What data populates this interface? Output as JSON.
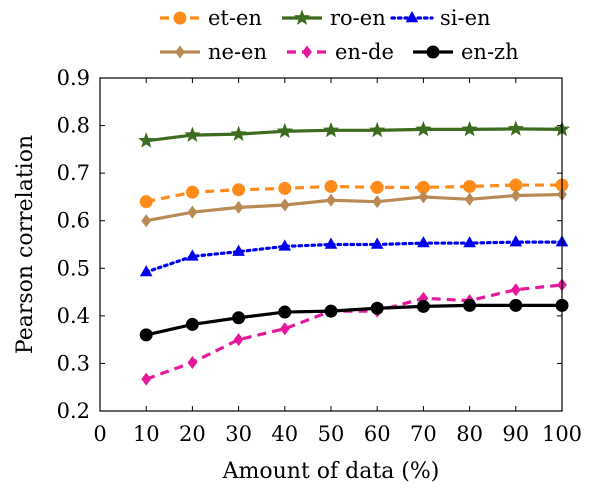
{
  "chart_data": {
    "type": "line",
    "xlabel": "Amount of data (%)",
    "ylabel": "Pearson correlation",
    "x": [
      10,
      20,
      30,
      40,
      50,
      60,
      70,
      80,
      90,
      100
    ],
    "xlim": [
      0,
      100
    ],
    "ylim": [
      0.2,
      0.9
    ],
    "xticks": [
      "0",
      "10",
      "20",
      "30",
      "40",
      "50",
      "60",
      "70",
      "80",
      "90",
      "100"
    ],
    "yticks": [
      "0.2",
      "0.3",
      "0.4",
      "0.5",
      "0.6",
      "0.7",
      "0.8",
      "0.9"
    ],
    "grid": false,
    "legend_position": "top",
    "series": [
      {
        "name": "et-en",
        "color": "#ff8c1a",
        "marker": "circle",
        "line_style": "dashed",
        "values": [
          0.64,
          0.66,
          0.665,
          0.668,
          0.672,
          0.67,
          0.67,
          0.672,
          0.675,
          0.675
        ]
      },
      {
        "name": "ro-en",
        "color": "#3d6b1f",
        "marker": "star",
        "line_style": "solid",
        "values": [
          0.768,
          0.78,
          0.782,
          0.788,
          0.79,
          0.79,
          0.792,
          0.792,
          0.793,
          0.792
        ]
      },
      {
        "name": "si-en",
        "color": "#0000ee",
        "marker": "triangle",
        "line_style": "dotted",
        "values": [
          0.492,
          0.525,
          0.535,
          0.546,
          0.55,
          0.55,
          0.553,
          0.553,
          0.555,
          0.555
        ]
      },
      {
        "name": "ne-en",
        "color": "#b98a55",
        "marker": "diamond",
        "line_style": "solid",
        "values": [
          0.6,
          0.618,
          0.628,
          0.633,
          0.643,
          0.64,
          0.65,
          0.645,
          0.653,
          0.655
        ]
      },
      {
        "name": "en-de",
        "color": "#e6199a",
        "marker": "diamond",
        "line_style": "dashed",
        "values": [
          0.267,
          0.302,
          0.35,
          0.373,
          0.41,
          0.41,
          0.437,
          0.432,
          0.455,
          0.465
        ]
      },
      {
        "name": "en-zh",
        "color": "#000000",
        "marker": "circle",
        "line_style": "solid",
        "values": [
          0.36,
          0.382,
          0.396,
          0.408,
          0.41,
          0.416,
          0.42,
          0.422,
          0.422,
          0.422
        ]
      }
    ]
  }
}
